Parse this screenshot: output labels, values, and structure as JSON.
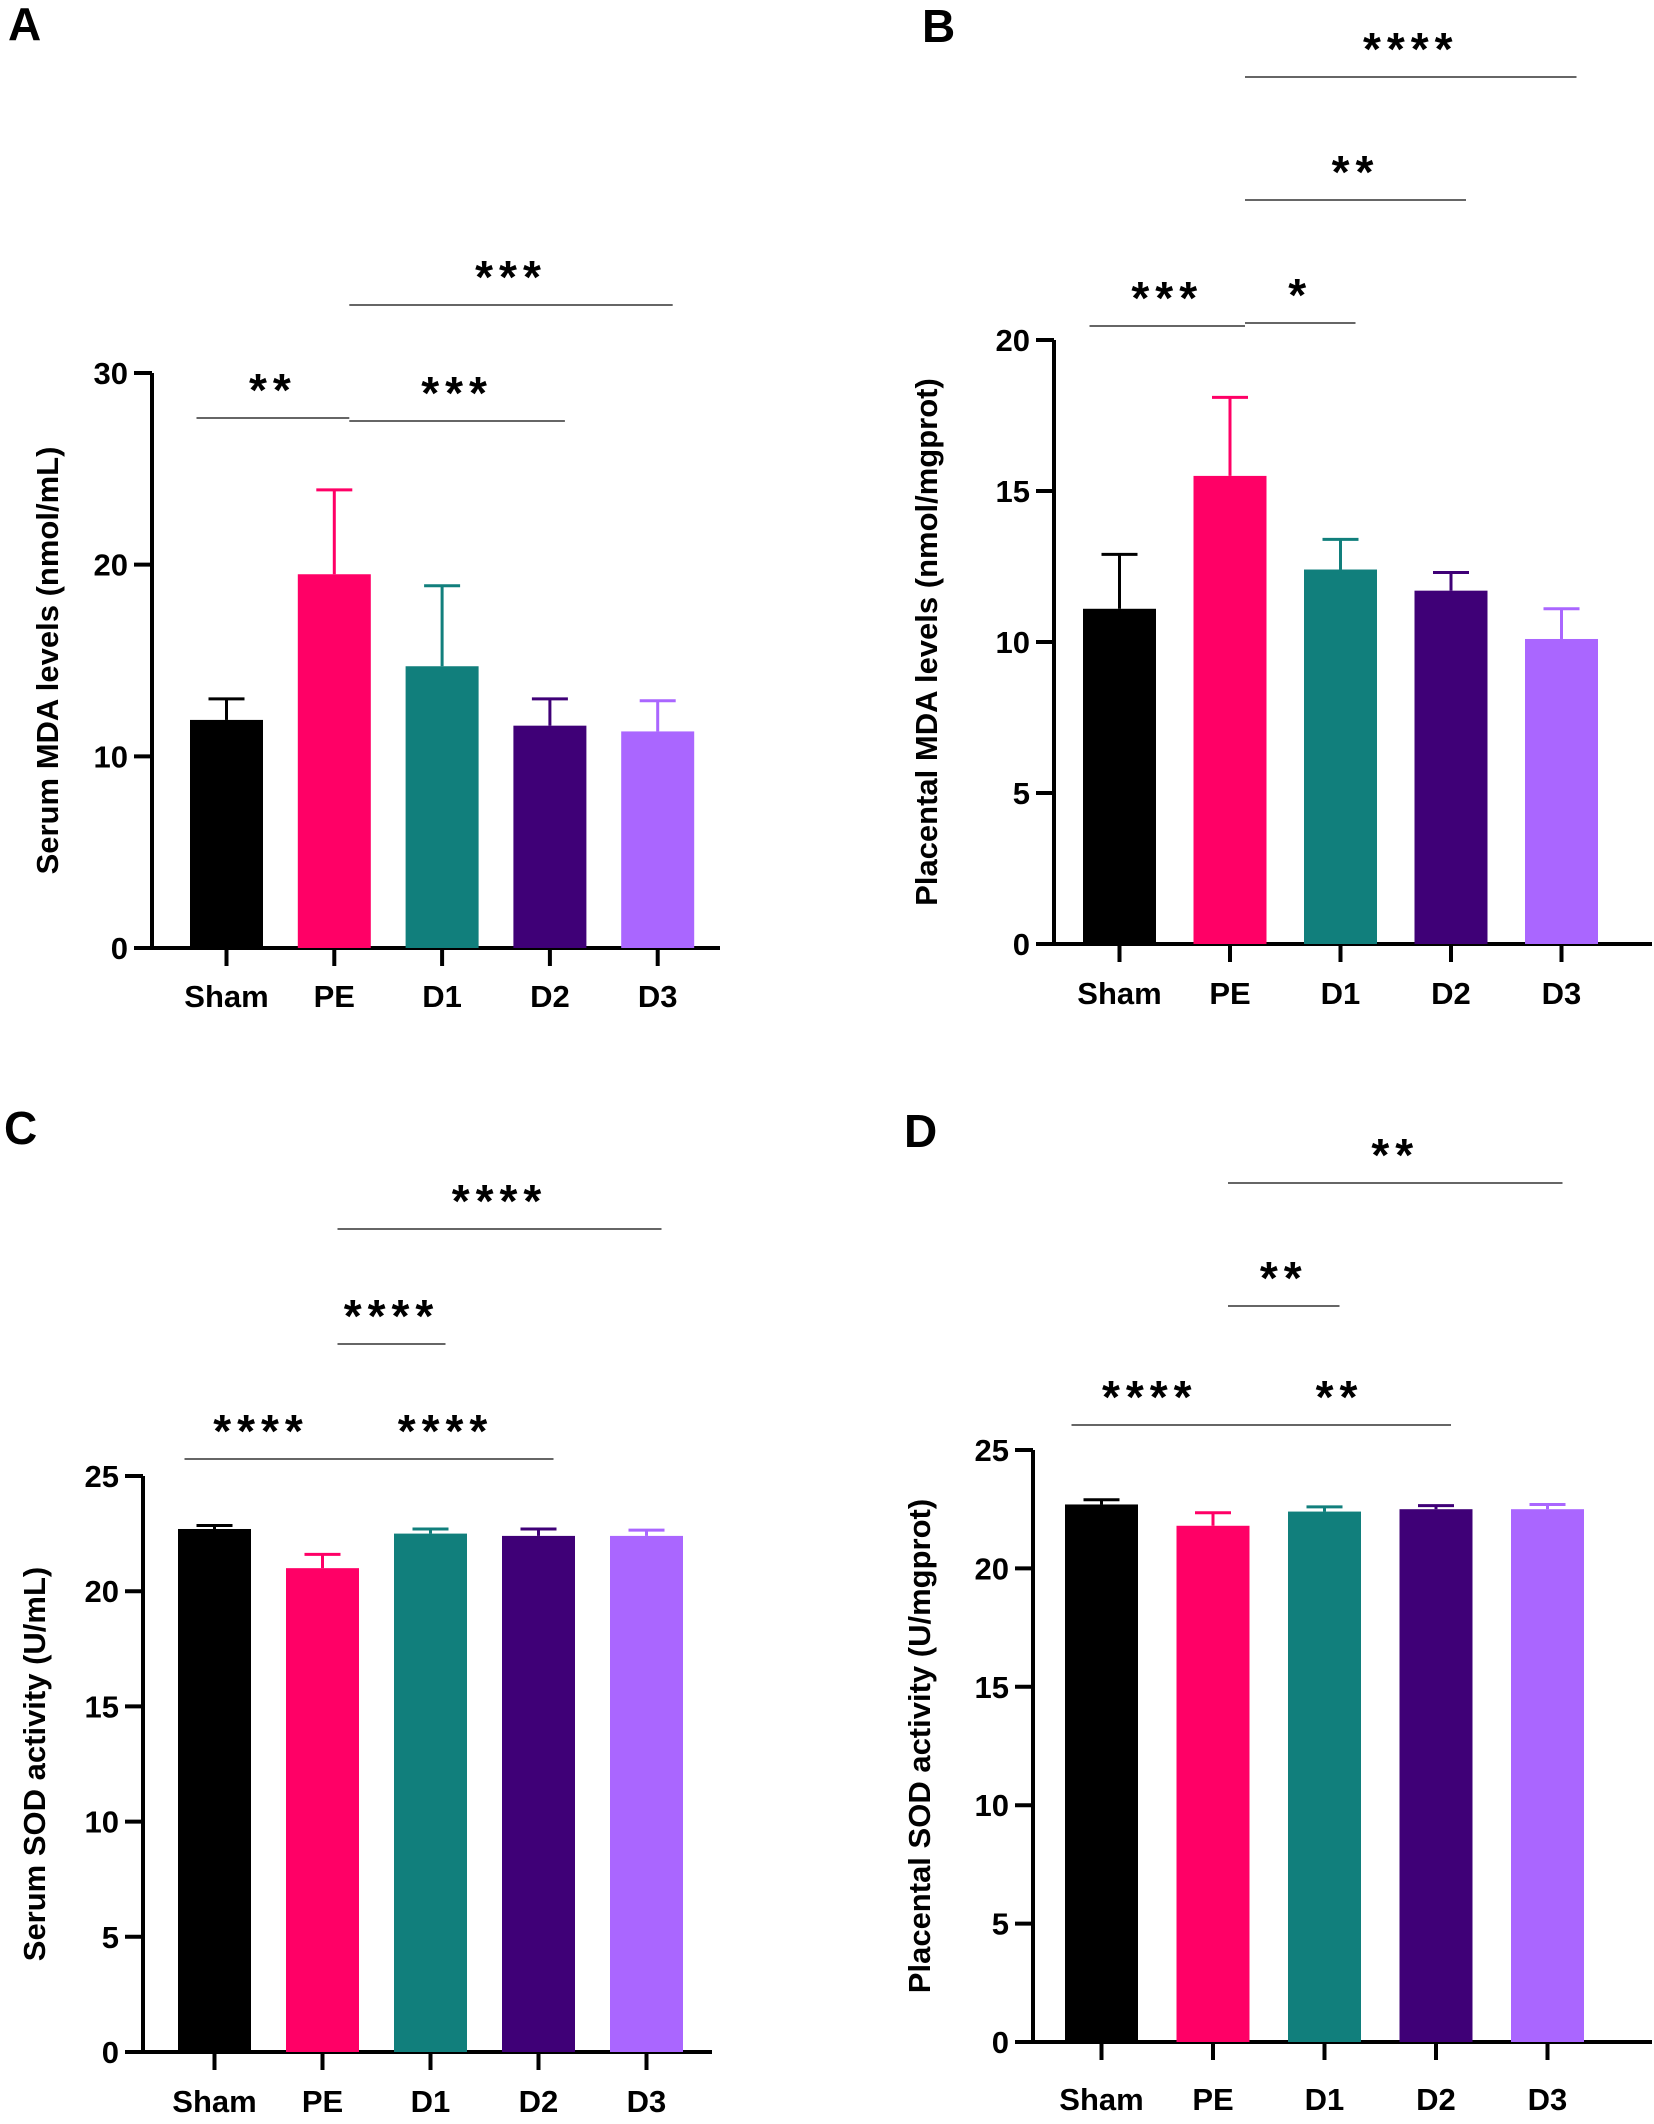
{
  "chart_data": [
    {
      "panel": "A",
      "type": "bar",
      "categories": [
        "Sham",
        "PE",
        "D1",
        "D2",
        "D3"
      ],
      "values": [
        11.9,
        19.5,
        14.7,
        11.6,
        11.3
      ],
      "errors": [
        1.1,
        4.4,
        4.2,
        1.4,
        1.6
      ],
      "colors": [
        "#000000",
        "#FF0066",
        "#117F7C",
        "#3F0077",
        "#AA66FF"
      ],
      "ylabel": "Serum MDA levels (nmol/mL)",
      "ylim": [
        0,
        30
      ],
      "yticks": [
        0,
        10,
        20,
        30
      ],
      "significance": [
        {
          "from": 0,
          "to": 1,
          "label": "**"
        },
        {
          "from": 1,
          "to": 3,
          "label": "***"
        },
        {
          "from": 1,
          "to": 4,
          "label": "***"
        }
      ]
    },
    {
      "panel": "B",
      "type": "bar",
      "categories": [
        "Sham",
        "PE",
        "D1",
        "D2",
        "D3"
      ],
      "values": [
        11.1,
        15.5,
        12.4,
        11.7,
        10.1
      ],
      "errors": [
        1.8,
        2.6,
        1.0,
        0.6,
        1.0
      ],
      "colors": [
        "#000000",
        "#FF0066",
        "#117F7C",
        "#3F0077",
        "#AA66FF"
      ],
      "ylabel": "Placental MDA levels (nmol/mgprot)",
      "ylim": [
        0,
        20
      ],
      "yticks": [
        0,
        5,
        10,
        15,
        20
      ],
      "significance": [
        {
          "from": 0,
          "to": 1,
          "label": "***"
        },
        {
          "from": 1,
          "to": 2,
          "label": "*"
        },
        {
          "from": 1,
          "to": 3,
          "label": "**"
        },
        {
          "from": 1,
          "to": 4,
          "label": "****"
        }
      ]
    },
    {
      "panel": "C",
      "type": "bar",
      "categories": [
        "Sham",
        "PE",
        "D1",
        "D2",
        "D3"
      ],
      "values": [
        22.7,
        21.0,
        22.5,
        22.4,
        22.4
      ],
      "errors": [
        0.15,
        0.6,
        0.2,
        0.3,
        0.25
      ],
      "colors": [
        "#000000",
        "#FF0066",
        "#117F7C",
        "#3F0077",
        "#AA66FF"
      ],
      "ylabel": "Serum SOD activity (U/mL)",
      "ylim": [
        0,
        25
      ],
      "yticks": [
        0,
        5,
        10,
        15,
        20,
        25
      ],
      "significance": [
        {
          "from": 0,
          "to": 1,
          "label": "****"
        },
        {
          "from": 1,
          "to": 3,
          "label": "****"
        },
        {
          "from": 1,
          "to": 2,
          "label": "****"
        },
        {
          "from": 1,
          "to": 4,
          "label": "****"
        }
      ]
    },
    {
      "panel": "D",
      "type": "bar",
      "categories": [
        "Sham",
        "PE",
        "D1",
        "D2",
        "D3"
      ],
      "values": [
        22.7,
        21.8,
        22.4,
        22.5,
        22.5
      ],
      "errors": [
        0.2,
        0.55,
        0.2,
        0.15,
        0.2
      ],
      "colors": [
        "#000000",
        "#FF0066",
        "#117F7C",
        "#3F0077",
        "#AA66FF"
      ],
      "ylabel": "Placental SOD activity (U/mgprot)",
      "ylim": [
        0,
        25
      ],
      "yticks": [
        0,
        5,
        10,
        15,
        20,
        25
      ],
      "significance": [
        {
          "from": 0,
          "to": 1,
          "label": "****"
        },
        {
          "from": 1,
          "to": 3,
          "label": "**"
        },
        {
          "from": 1,
          "to": 2,
          "label": "**"
        },
        {
          "from": 1,
          "to": 4,
          "label": "**"
        }
      ]
    }
  ]
}
